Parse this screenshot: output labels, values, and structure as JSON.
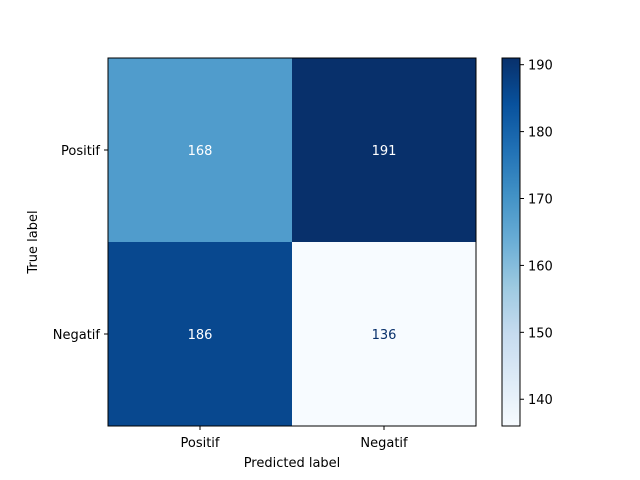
{
  "chart_data": {
    "type": "heatmap",
    "title": "",
    "xlabel": "Predicted label",
    "ylabel": "True label",
    "x_categories": [
      "Positif",
      "Negatif"
    ],
    "y_categories": [
      "Positif",
      "Negatif"
    ],
    "values": [
      [
        168,
        191
      ],
      [
        186,
        136
      ]
    ],
    "colormap": "Blues",
    "colorbar": {
      "range": [
        136,
        191
      ],
      "ticks": [
        140,
        150,
        160,
        170,
        180,
        190
      ],
      "position": "right"
    },
    "grid": false
  }
}
